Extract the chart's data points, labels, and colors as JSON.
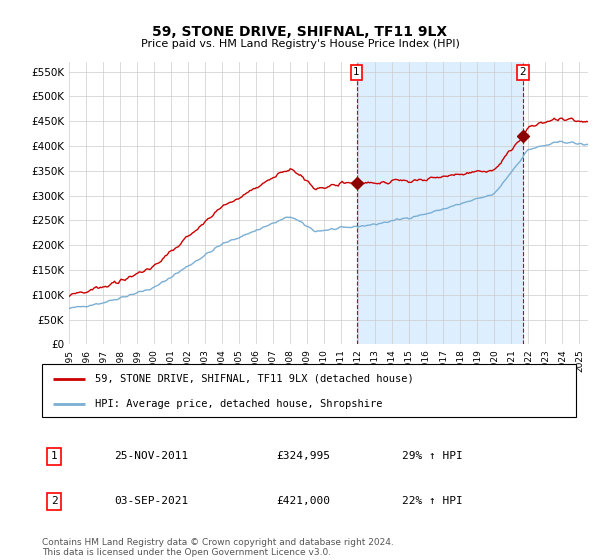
{
  "title": "59, STONE DRIVE, SHIFNAL, TF11 9LX",
  "subtitle": "Price paid vs. HM Land Registry's House Price Index (HPI)",
  "ylabel_ticks": [
    "£0",
    "£50K",
    "£100K",
    "£150K",
    "£200K",
    "£250K",
    "£300K",
    "£350K",
    "£400K",
    "£450K",
    "£500K",
    "£550K"
  ],
  "ytick_vals": [
    0,
    50000,
    100000,
    150000,
    200000,
    250000,
    300000,
    350000,
    400000,
    450000,
    500000,
    550000
  ],
  "ylim": [
    0,
    570000
  ],
  "legend_line1": "59, STONE DRIVE, SHIFNAL, TF11 9LX (detached house)",
  "legend_line2": "HPI: Average price, detached house, Shropshire",
  "sale1_date": "25-NOV-2011",
  "sale1_price": "£324,995",
  "sale1_hpi": "29% ↑ HPI",
  "sale2_date": "03-SEP-2021",
  "sale2_price": "£421,000",
  "sale2_hpi": "22% ↑ HPI",
  "footer": "Contains HM Land Registry data © Crown copyright and database right 2024.\nThis data is licensed under the Open Government Licence v3.0.",
  "hpi_color": "#7bafd4",
  "price_color": "#cc0000",
  "shade_color": "#ddeeff",
  "background_color": "#ffffff",
  "grid_color": "#cccccc",
  "sale1_x_year": 2011.9,
  "sale1_y": 324995,
  "sale2_x_year": 2021.67,
  "sale2_y": 421000,
  "xlim_left": 1995.0,
  "xlim_right": 2025.5
}
